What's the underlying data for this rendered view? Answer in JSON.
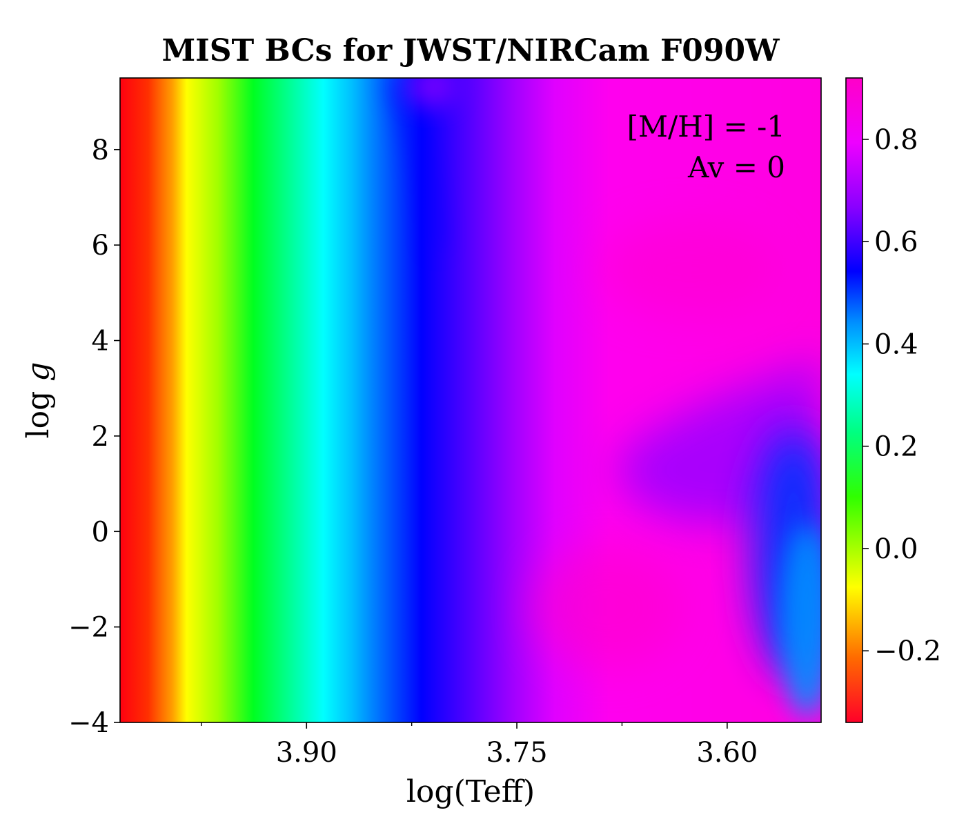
{
  "chart_data": {
    "type": "heatmap",
    "title": "MIST BCs for JWST/NIRCam F090W",
    "xlabel": "log(Teff)",
    "ylabel_main": "log ",
    "ylabel_italic": "g",
    "xlim": [
      4.033,
      3.533
    ],
    "ylim": [
      -4,
      9.5
    ],
    "x_ticks": [
      3.9,
      3.75,
      3.6
    ],
    "x_tick_labels": [
      "3.90",
      "3.75",
      "3.60"
    ],
    "x_minor_ticks": [
      3.975,
      3.825,
      3.675,
      3.525
    ],
    "y_ticks": [
      -4,
      -2,
      0,
      2,
      4,
      6,
      8
    ],
    "y_tick_labels": [
      "−4",
      "−2",
      "0",
      "2",
      "4",
      "6",
      "8"
    ],
    "colorbar": {
      "colormap": "gist_rainbow_r",
      "vmin": -0.34,
      "vmax": 0.92,
      "ticks": [
        -0.2,
        0.0,
        0.2,
        0.4,
        0.6,
        0.8
      ],
      "tick_labels": [
        "−0.2",
        "0.0",
        "0.2",
        "0.4",
        "0.6",
        "0.8"
      ]
    },
    "annotations": [
      "[M/H] = -1",
      "Av = 0"
    ],
    "bc_vs_logteff_at_logg_4": [
      {
        "logTeff": 4.03,
        "BC": -0.33
      },
      {
        "logTeff": 3.98,
        "BC": -0.1
      },
      {
        "logTeff": 3.93,
        "BC": 0.12
      },
      {
        "logTeff": 3.88,
        "BC": 0.38
      },
      {
        "logTeff": 3.83,
        "BC": 0.55
      },
      {
        "logTeff": 3.78,
        "BC": 0.65
      },
      {
        "logTeff": 3.73,
        "BC": 0.78
      },
      {
        "logTeff": 3.68,
        "BC": 0.87
      },
      {
        "logTeff": 3.63,
        "BC": 0.9
      },
      {
        "logTeff": 3.58,
        "BC": 0.9
      },
      {
        "logTeff": 3.54,
        "BC": 0.88
      }
    ]
  }
}
